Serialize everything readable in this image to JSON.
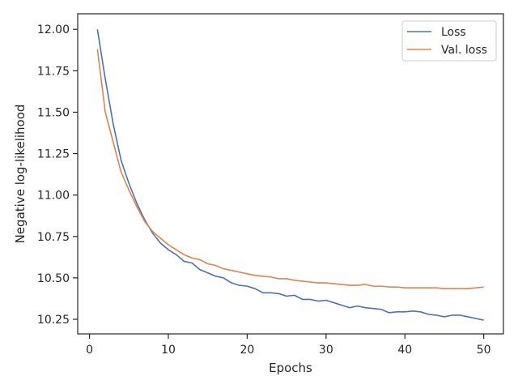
{
  "chart_data": {
    "type": "line",
    "title": "",
    "xlabel": "Epochs",
    "ylabel": "Negative log-likelihood",
    "xlim": [
      -1.5,
      52.5
    ],
    "ylim": [
      10.162,
      12.094
    ],
    "xticks": [
      0,
      10,
      20,
      30,
      40,
      50
    ],
    "yticks": [
      10.25,
      10.5,
      10.75,
      11.0,
      11.25,
      11.5,
      11.75,
      12.0
    ],
    "ytick_labels": [
      "10.25",
      "10.50",
      "10.75",
      "11.00",
      "11.25",
      "11.50",
      "11.75",
      "12.00"
    ],
    "grid": false,
    "legend_position": "top-right",
    "x": [
      1,
      2,
      3,
      4,
      5,
      6,
      7,
      8,
      9,
      10,
      11,
      12,
      13,
      14,
      15,
      16,
      17,
      18,
      19,
      20,
      21,
      22,
      23,
      24,
      25,
      26,
      27,
      28,
      29,
      30,
      31,
      32,
      33,
      34,
      35,
      36,
      37,
      38,
      39,
      40,
      41,
      42,
      43,
      44,
      45,
      46,
      47,
      48,
      49,
      50
    ],
    "series": [
      {
        "name": "Loss",
        "color": "#4c72b0",
        "values": [
          12.0,
          11.7,
          11.43,
          11.21,
          11.07,
          10.95,
          10.85,
          10.77,
          10.71,
          10.67,
          10.64,
          10.6,
          10.59,
          10.55,
          10.53,
          10.51,
          10.5,
          10.47,
          10.455,
          10.45,
          10.435,
          10.41,
          10.41,
          10.405,
          10.39,
          10.395,
          10.37,
          10.37,
          10.36,
          10.365,
          10.35,
          10.335,
          10.32,
          10.33,
          10.32,
          10.315,
          10.31,
          10.29,
          10.295,
          10.295,
          10.3,
          10.295,
          10.28,
          10.275,
          10.265,
          10.275,
          10.275,
          10.265,
          10.255,
          10.245
        ]
      },
      {
        "name": "Val. loss",
        "color": "#dd8452",
        "values": [
          11.88,
          11.5,
          11.32,
          11.14,
          11.03,
          10.93,
          10.84,
          10.78,
          10.74,
          10.7,
          10.67,
          10.64,
          10.62,
          10.61,
          10.585,
          10.575,
          10.555,
          10.545,
          10.535,
          10.525,
          10.515,
          10.51,
          10.505,
          10.495,
          10.495,
          10.485,
          10.48,
          10.475,
          10.47,
          10.47,
          10.465,
          10.46,
          10.455,
          10.455,
          10.46,
          10.45,
          10.45,
          10.445,
          10.445,
          10.44,
          10.44,
          10.44,
          10.44,
          10.44,
          10.435,
          10.435,
          10.435,
          10.435,
          10.44,
          10.445
        ]
      }
    ]
  }
}
